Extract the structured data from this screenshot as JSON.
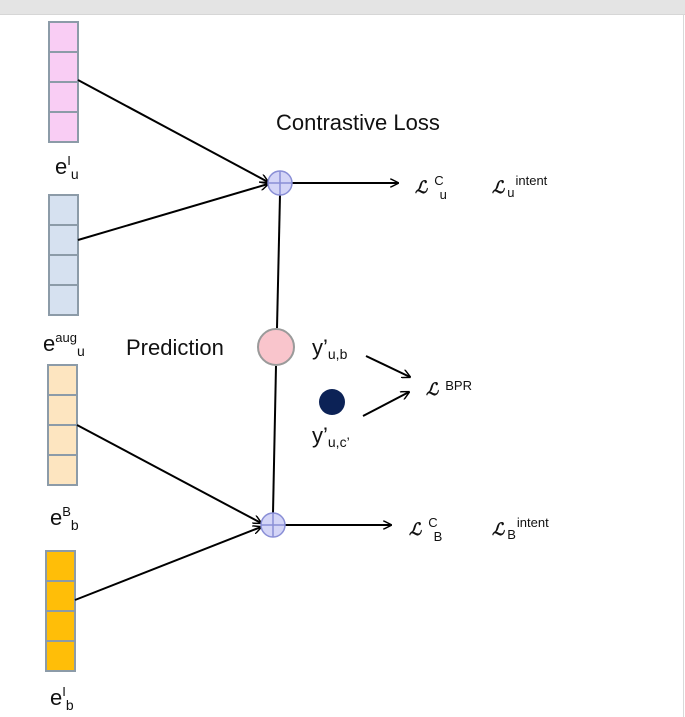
{
  "colors": {
    "vec_pink": "#f9cdf4",
    "vec_blue": "#d6e1f0",
    "vec_peach": "#fde5c0",
    "vec_gold": "#ffbe08",
    "vec_border": "#8c9ba8",
    "node_fill": "#d4d5f7",
    "node_stroke": "#8a8fd6",
    "pred_fill": "#f9c5cc",
    "pred_stroke": "#9a9a9a",
    "dark_dot": "#0c2256"
  },
  "labels": {
    "contrastive_loss": "Contrastive Loss",
    "prediction": "Prediction"
  },
  "vectors": {
    "e_intent_user": {
      "base": "e",
      "sup": "I",
      "sub": "u"
    },
    "e_aug_user": {
      "base": "e",
      "sup": "aug",
      "sub": "u"
    },
    "e_behavior_bundle": {
      "base": "e",
      "sup": "B",
      "sub": "b"
    },
    "e_intent_bundle": {
      "base": "e",
      "sup": "I",
      "sub": "b"
    }
  },
  "losses": {
    "contrastive_user": {
      "symbol": "ℒ",
      "sup": "C",
      "sub": "u"
    },
    "intent_user": {
      "symbol": "ℒ",
      "sup": "intent",
      "sub": "u"
    },
    "contrastive_bundle": {
      "symbol": "ℒ",
      "sup": "C",
      "sub": "B"
    },
    "intent_bundle": {
      "symbol": "ℒ",
      "sup": "intent",
      "sub": "B"
    },
    "bpr": {
      "symbol": "ℒ",
      "sup": "BPR"
    }
  },
  "predictions": {
    "positive": {
      "base": "y’",
      "sub": "u,b"
    },
    "negative": {
      "base": "y’",
      "sub": "u,c’"
    }
  }
}
